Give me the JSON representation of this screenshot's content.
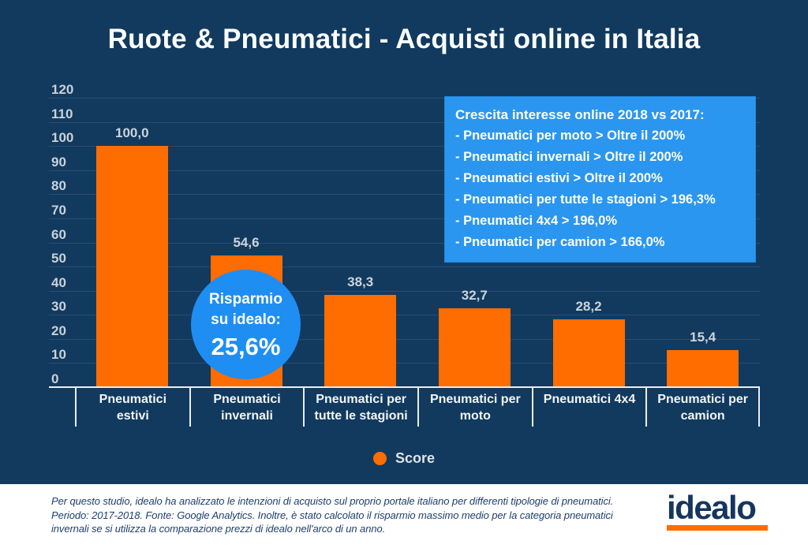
{
  "title": "Ruote & Pneumatici - Acquisti online in Italia",
  "chart_data": {
    "type": "bar",
    "categories": [
      "Pneumatici estivi",
      "Pneumatici invernali",
      "Pneumatici per tutte le stagioni",
      "Pneumatici per moto",
      "Pneumatici 4x4",
      "Pneumatici per camion"
    ],
    "values": [
      100.0,
      54.6,
      38.3,
      32.7,
      28.2,
      15.4
    ],
    "value_labels": [
      "100,0",
      "54,6",
      "38,3",
      "32,7",
      "28,2",
      "15,4"
    ],
    "title": "Ruote & Pneumatici - Acquisti online in Italia",
    "xlabel": "",
    "ylabel": "",
    "ylim": [
      0,
      120
    ],
    "yticks": [
      0,
      10,
      20,
      30,
      40,
      50,
      60,
      70,
      80,
      90,
      100,
      110,
      120
    ],
    "grid": true,
    "legend": {
      "position": "bottom",
      "entries": [
        {
          "label": "Score",
          "color": "#ff6c00"
        }
      ]
    },
    "bar_color": "#ff6c00"
  },
  "growth_box": {
    "title": "Crescita interesse online 2018 vs 2017:",
    "items": [
      "- Pneumatici per moto > Oltre il 200%",
      "- Pneumatici invernali > Oltre il 200%",
      "- Pneumatici estivi > Oltre il 200%",
      "- Pneumatici per tutte le stagioni > 196,3%",
      "- Pneumatici 4x4 > 196,0%",
      "- Pneumatici per camion > 166,0%"
    ],
    "background": "#2b96ef"
  },
  "savings_badge": {
    "line1": "Risparmio",
    "line2": "su idealo:",
    "value": "25,6%",
    "background": "#1e8ef3"
  },
  "footer": {
    "lines": [
      "Per questo studio, idealo ha analizzato le intenzioni di acquisto sul proprio portale italiano per differenti tipologie di pneumatici.",
      "Periodo: 2017-2018. Fonte: Google Analytics. Inoltre, è stato calcolato il risparmio massimo medio per la categoria pneumatici",
      "invernali se si utilizza la comparazione prezzi di idealo nell'arco di un anno."
    ],
    "logo_text": "idealo"
  },
  "colors": {
    "background": "#123a5e",
    "gridline": "#2b4c70",
    "bar": "#ff6c00",
    "axis_line": "#e9eef3",
    "tick_label": "#c9d1d9",
    "value_label": "#ccd4dc",
    "category_label": "#f2f6f9",
    "infobox_blue": "#2b96ef",
    "badge_blue": "#1e8ef3",
    "footer_text": "#1e3f6d",
    "logo_navy": "#16355e"
  }
}
